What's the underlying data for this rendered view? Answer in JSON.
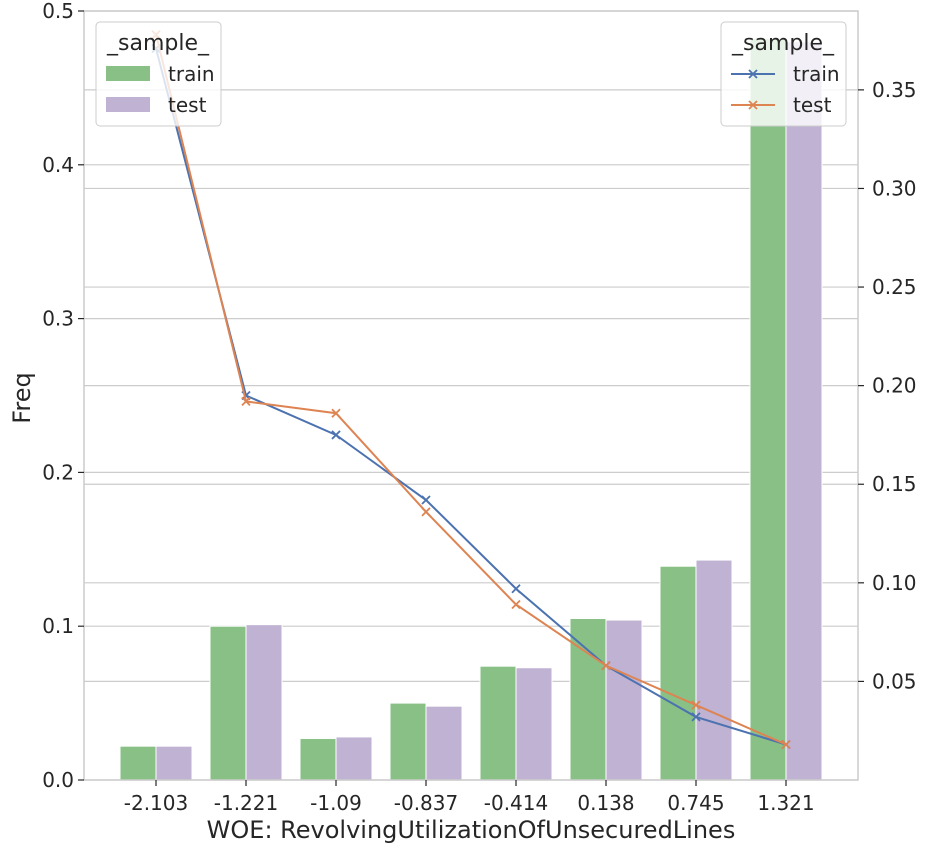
{
  "chart_data": {
    "type": "bar+line",
    "categories": [
      "-2.103",
      "-1.221",
      "-1.09",
      "-0.837",
      "-0.414",
      "0.138",
      "0.745",
      "1.321"
    ],
    "xlabel": "WOE: RevolvingUtilizationOfUnsecuredLines",
    "ylabel": "Freq",
    "ylabel_right": "",
    "ylim": [
      0,
      0.5
    ],
    "ylim_right": [
      0,
      0.39
    ],
    "yticks": [
      "0.0",
      "0.1",
      "0.2",
      "0.3",
      "0.4",
      "0.5"
    ],
    "yticks_right": [
      "0.05",
      "0.10",
      "0.15",
      "0.20",
      "0.25",
      "0.30",
      "0.35"
    ],
    "grid": true,
    "bar_series": [
      {
        "name": "train",
        "color": "#88c086",
        "values": [
          0.022,
          0.1,
          0.027,
          0.05,
          0.074,
          0.105,
          0.139,
          0.482
        ]
      },
      {
        "name": "test",
        "color": "#bfb2d3",
        "values": [
          0.022,
          0.101,
          0.028,
          0.048,
          0.073,
          0.104,
          0.143,
          0.48
        ]
      }
    ],
    "line_series": [
      {
        "name": "train",
        "color": "#4c72b0",
        "marker": "x",
        "values": [
          0.371,
          0.195,
          0.175,
          0.142,
          0.097,
          0.058,
          0.032,
          0.018
        ]
      },
      {
        "name": "test",
        "color": "#dd8452",
        "marker": "x",
        "values": [
          0.378,
          0.192,
          0.186,
          0.136,
          0.089,
          0.058,
          0.038,
          0.018
        ]
      }
    ],
    "legend_bars": {
      "title": "_sample_",
      "position": "top-left"
    },
    "legend_lines": {
      "title": "_sample_",
      "position": "top-right"
    }
  }
}
